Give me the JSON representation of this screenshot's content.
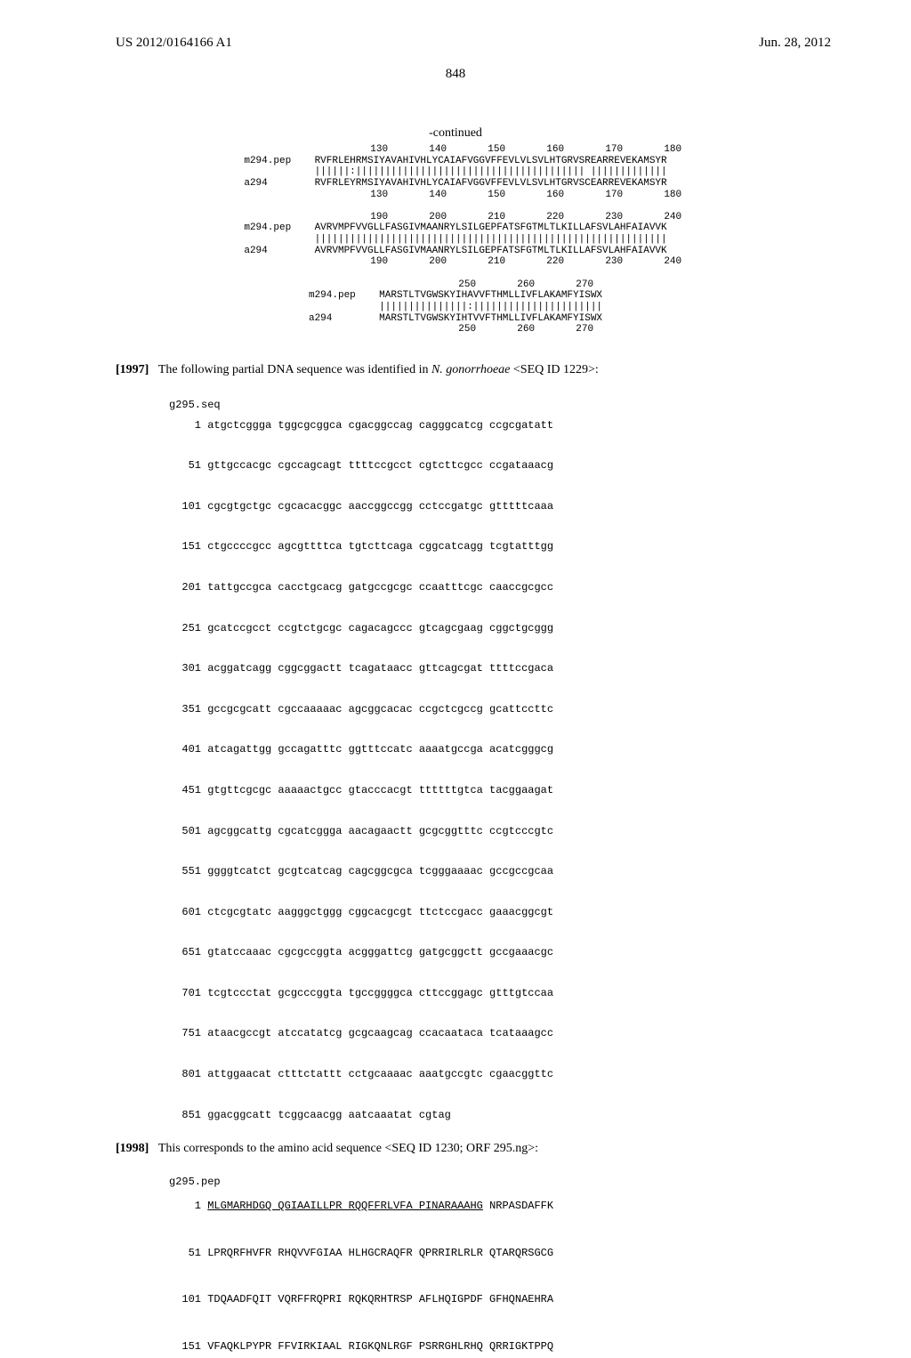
{
  "header": {
    "pub_number": "US 2012/0164166 A1",
    "pub_date": "Jun. 28, 2012"
  },
  "page_number": "848",
  "continued_label": "-continued",
  "alignment": {
    "ruler_top1": "              130       140       150       160       170       180",
    "m294_1_label": "m294.pep",
    "m294_1_seq": "RVFRLEHRMSIYAVAHIVHLYCAIAFVGGVFFEVLVLSVLHTGRVSREARREVEKAMSYR",
    "match_1": "||||||:||||||||||||||||||||||||||||||||||||||| |||||||||||||",
    "a294_1_label": "a294",
    "a294_1_seq": "RVFRLEYRMSIYAVAHIVHLYCAIAFVGGVFFEVLVLSVLHTGRVSCEARREVEKAMSYR",
    "ruler_bot1": "              130       140       150       160       170       180",
    "ruler_top2": "              190       200       210       220       230       240",
    "m294_2_seq": "AVRVMPFVVGLLFASGIVMAANRYLSILGEPFATSFGTMLTLKILLAFSVLAHFAIAVVK",
    "match_2": "||||||||||||||||||||||||||||||||||||||||||||||||||||||||||||",
    "a294_2_seq": "AVRVMPFVVGLLFASGIVMAANRYLSILGEPFATSFGTMLTLKILLAFSVLAHFAIAVVK",
    "ruler_bot2": "              190       200       210       220       230       240",
    "ruler_top3": "              250       260       270",
    "m294_3_seq": "MARSTLTVGWSKYIHAVVFTHMLLIVFLAKAMFYISWX",
    "match_3": "|||||||||||||||:||||||||||||||||||||||",
    "a294_3_seq": "MARSTLTVGWSKYIHTVVFTHMLLIVFLAKAMFYISWX",
    "ruler_bot3": "              250       260       270"
  },
  "para1997": {
    "num": "[1997]",
    "text_before": "The following partial DNA sequence was identified in ",
    "organism": "N. gonorrhoeae",
    "text_after": " <SEQ ID 1229>:"
  },
  "g295seq": {
    "title": "g295.seq",
    "lines": [
      "    1 atgctcggga tggcgcggca cgacggccag cagggcatcg ccgcgatatt",
      "   51 gttgccacgc cgccagcagt ttttccgcct cgtcttcgcc ccgataaacg",
      "  101 cgcgtgctgc cgcacacggc aaccggccgg cctccgatgc gtttttcaaa",
      "  151 ctgccccgcc agcgttttca tgtcttcaga cggcatcagg tcgtatttgg",
      "  201 tattgccgca cacctgcacg gatgccgcgc ccaatttcgc caaccgcgcc",
      "  251 gcatccgcct ccgtctgcgc cagacagccc gtcagcgaag cggctgcggg",
      "  301 acggatcagg cggcggactt tcagataacc gttcagcgat ttttccgaca",
      "  351 gccgcgcatt cgccaaaaac agcggcacac ccgctcgccg gcattccttc",
      "  401 atcagattgg gccagatttc ggtttccatc aaaatgccga acatcgggcg",
      "  451 gtgttcgcgc aaaaactgcc gtacccacgt ttttttgtca tacggaagat",
      "  501 agcggcattg cgcatcggga aacagaactt gcgcggtttc ccgtcccgtc",
      "  551 ggggtcatct gcgtcatcag cagcggcgca tcgggaaaac gccgccgcaa",
      "  601 ctcgcgtatc aagggctggg cggcacgcgt ttctccgacc gaaacggcgt",
      "  651 gtatccaaac cgcgccggta acgggattcg gatgcggctt gccgaaacgc",
      "  701 tcgtccctat gcgcccggta tgccggggca cttccggagc gtttgtccaa",
      "  751 ataacgccgt atccatatcg gcgcaagcag ccacaataca tcataaagcc",
      "  801 attggaacat ctttctattt cctgcaaaac aaatgccgtc cgaacggttc",
      "  851 ggacggcatt tcggcaacgg aatcaaatat cgtag"
    ]
  },
  "para1998": {
    "num": "[1998]",
    "text": "This corresponds to the amino acid sequence <SEQ ID 1230; ORF 295.ng>:"
  },
  "g295pep": {
    "title": "g295.pep",
    "line1_prefix": "    1 ",
    "line1_underlined": "MLGMARHDGQ QGIAAILLPR RQQFFRLVFA PINARAAAHG",
    "line1_rest": " NRPASDAFFK",
    "lines": [
      "   51 LPRQRFHVFR RHQVVFGIAA HLHGCRAQFR QPRRIRLRLR QTARQRSGCG",
      "  101 TDQAADFQIT VQRFFRQPRI RQKQRHTRSP AFLHQIGPDF GFHQNAEHRA",
      "  151 VFAQKLPYPR FFVIRKIAAL RIGKQNLRGF PSRRGHLRHQ QRRIGKTPPQ"
    ]
  },
  "style": {
    "bg": "#ffffff",
    "text_color": "#000000",
    "mono_font": "Courier New",
    "serif_font": "Times New Roman",
    "body_fontsize": 14,
    "mono_fontsize_alignment": 11,
    "mono_fontsize_seq": 12
  }
}
